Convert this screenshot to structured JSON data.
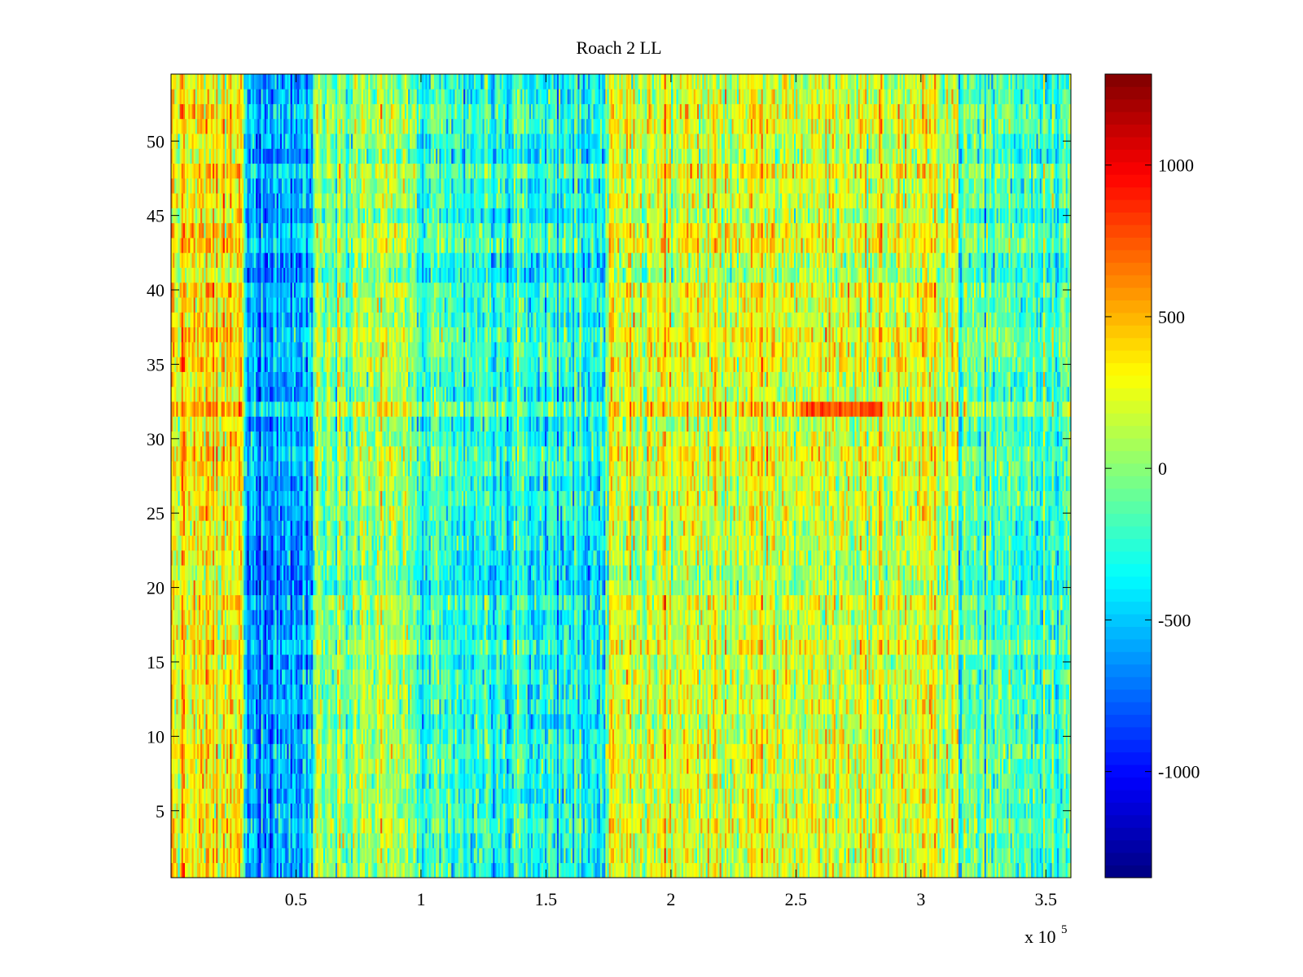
{
  "chart_data": {
    "type": "heatmap",
    "title": "Roach 2 LL",
    "xlabel": "",
    "ylabel": "",
    "x_multiplier_label": {
      "base": "x 10",
      "exponent": "5"
    },
    "xlim": [
      0,
      3.6
    ],
    "ylim": [
      0.5,
      54.5
    ],
    "x_ticks": [
      0.5,
      1,
      1.5,
      2,
      2.5,
      3,
      3.5
    ],
    "x_tick_labels": [
      "0.5",
      "1",
      "1.5",
      "2",
      "2.5",
      "3",
      "3.5"
    ],
    "y_ticks": [
      5,
      10,
      15,
      20,
      25,
      30,
      35,
      40,
      45,
      50
    ],
    "y_tick_labels": [
      "5",
      "10",
      "15",
      "20",
      "25",
      "30",
      "35",
      "40",
      "45",
      "50"
    ],
    "rows": 54,
    "colorbar": {
      "colormap": "jet",
      "clim": [
        -1350,
        1300
      ],
      "ticks": [
        -1000,
        -500,
        0,
        500,
        1000
      ],
      "tick_labels": [
        "-1000",
        "-500",
        "0",
        "500",
        "1000"
      ]
    },
    "column_bands": [
      {
        "x_from": 0.0,
        "x_to": 0.29,
        "mean": 300
      },
      {
        "x_from": 0.29,
        "x_to": 0.57,
        "mean": -550
      },
      {
        "x_from": 0.57,
        "x_to": 0.97,
        "mean": 60
      },
      {
        "x_from": 0.97,
        "x_to": 1.75,
        "mean": -300
      },
      {
        "x_from": 1.75,
        "x_to": 3.15,
        "mean": 200
      },
      {
        "x_from": 3.15,
        "x_to": 3.6,
        "mean": -150
      }
    ],
    "hot_spot": {
      "x_from": 2.52,
      "x_to": 2.84,
      "y": 32,
      "value": 780
    },
    "noise_amplitude": 260,
    "grid": false,
    "legend": "none"
  }
}
